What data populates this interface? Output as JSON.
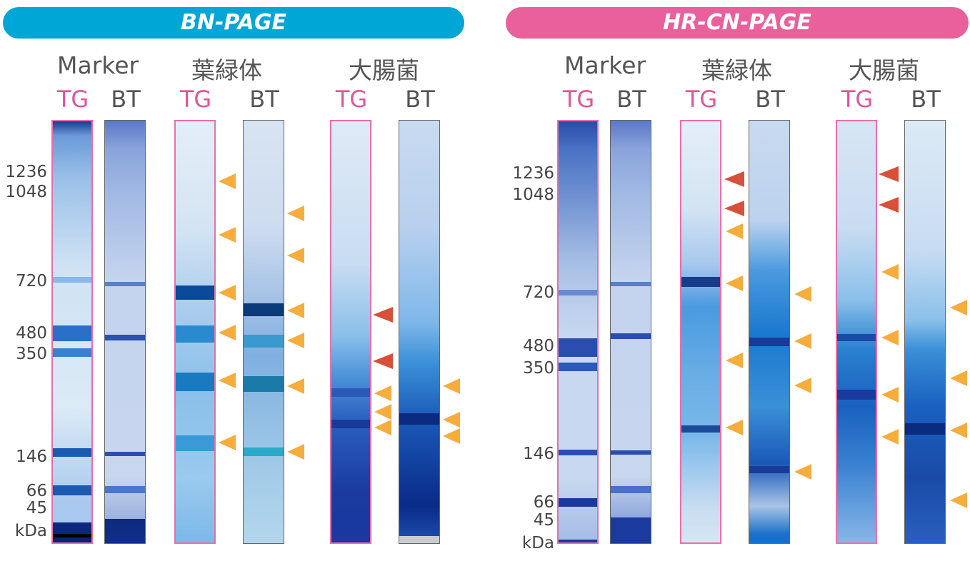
{
  "panels": {
    "bn": {
      "title": "BN-PAGE",
      "color": "#00a6d6"
    },
    "hr": {
      "title": "HR-CN-PAGE",
      "color": "#e9609d"
    }
  },
  "groups": {
    "marker": "Marker",
    "chloroplast": "葉緑体",
    "ecoli": "大腸菌"
  },
  "lanes": {
    "tg": "TG",
    "bt": "BT"
  },
  "mw_labels": [
    "1236",
    "1048",
    "720",
    "480",
    "350",
    "146",
    "66",
    "45",
    "kDa"
  ],
  "colors": {
    "tg_text": "#e2559a",
    "arrow_orange": "#f6ad3c",
    "arrow_red": "#d8503a"
  }
}
